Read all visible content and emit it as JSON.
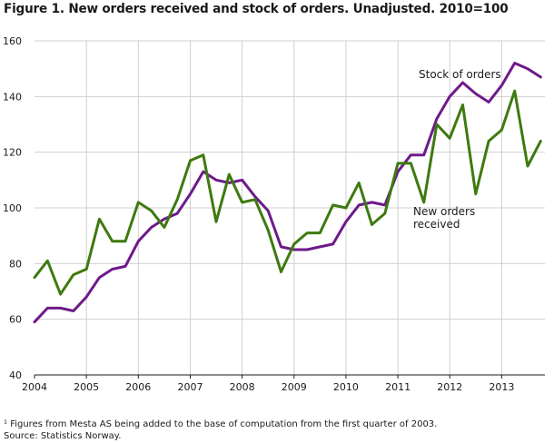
{
  "chart_data": {
    "type": "line",
    "title": "Figure 1. New orders received and stock of orders. Unadjusted. 2010=100",
    "xlabel": "",
    "ylabel": "",
    "ylim": [
      40,
      160
    ],
    "yticks": [
      40,
      60,
      80,
      100,
      120,
      140,
      160
    ],
    "xlim": [
      2004,
      2013.833
    ],
    "xticks": [
      2004,
      2005,
      2006,
      2007,
      2008,
      2009,
      2010,
      2011,
      2012,
      2013
    ],
    "x_start": 2004.0,
    "x_step": 0.25,
    "series": [
      {
        "name": "New orders received",
        "label_lines": [
          "New orders",
          "received"
        ],
        "color": "#3d7a10",
        "values": [
          75,
          81,
          69,
          76,
          78,
          96,
          88,
          88,
          102,
          99,
          93,
          103,
          117,
          119,
          95,
          112,
          102,
          103,
          92,
          77,
          87,
          91,
          91,
          101,
          100,
          109,
          94,
          98,
          116,
          116,
          102,
          130,
          125,
          137,
          105,
          124,
          128,
          142,
          115,
          124
        ]
      },
      {
        "name": "Stock of orders",
        "label_lines": [
          "Stock of orders"
        ],
        "color": "#6e1a8a",
        "values": [
          59,
          64,
          64,
          63,
          68,
          75,
          78,
          79,
          88,
          93,
          96,
          98,
          105,
          113,
          110,
          109,
          110,
          104,
          99,
          86,
          85,
          85,
          86,
          87,
          95,
          101,
          102,
          101,
          113,
          119,
          119,
          132,
          140,
          145,
          141,
          138,
          144,
          152,
          150,
          147
        ]
      }
    ]
  },
  "notes": {
    "footnote": "¹ Figures from Mesta AS being added to the base of computation from the first quarter of 2003.",
    "source": "Source: Statistics Norway."
  },
  "colors": {
    "new_orders": "#3d7a10",
    "stock": "#6e1a8a",
    "grid": "#d0d0d0",
    "axis": "#1a1a1a"
  }
}
